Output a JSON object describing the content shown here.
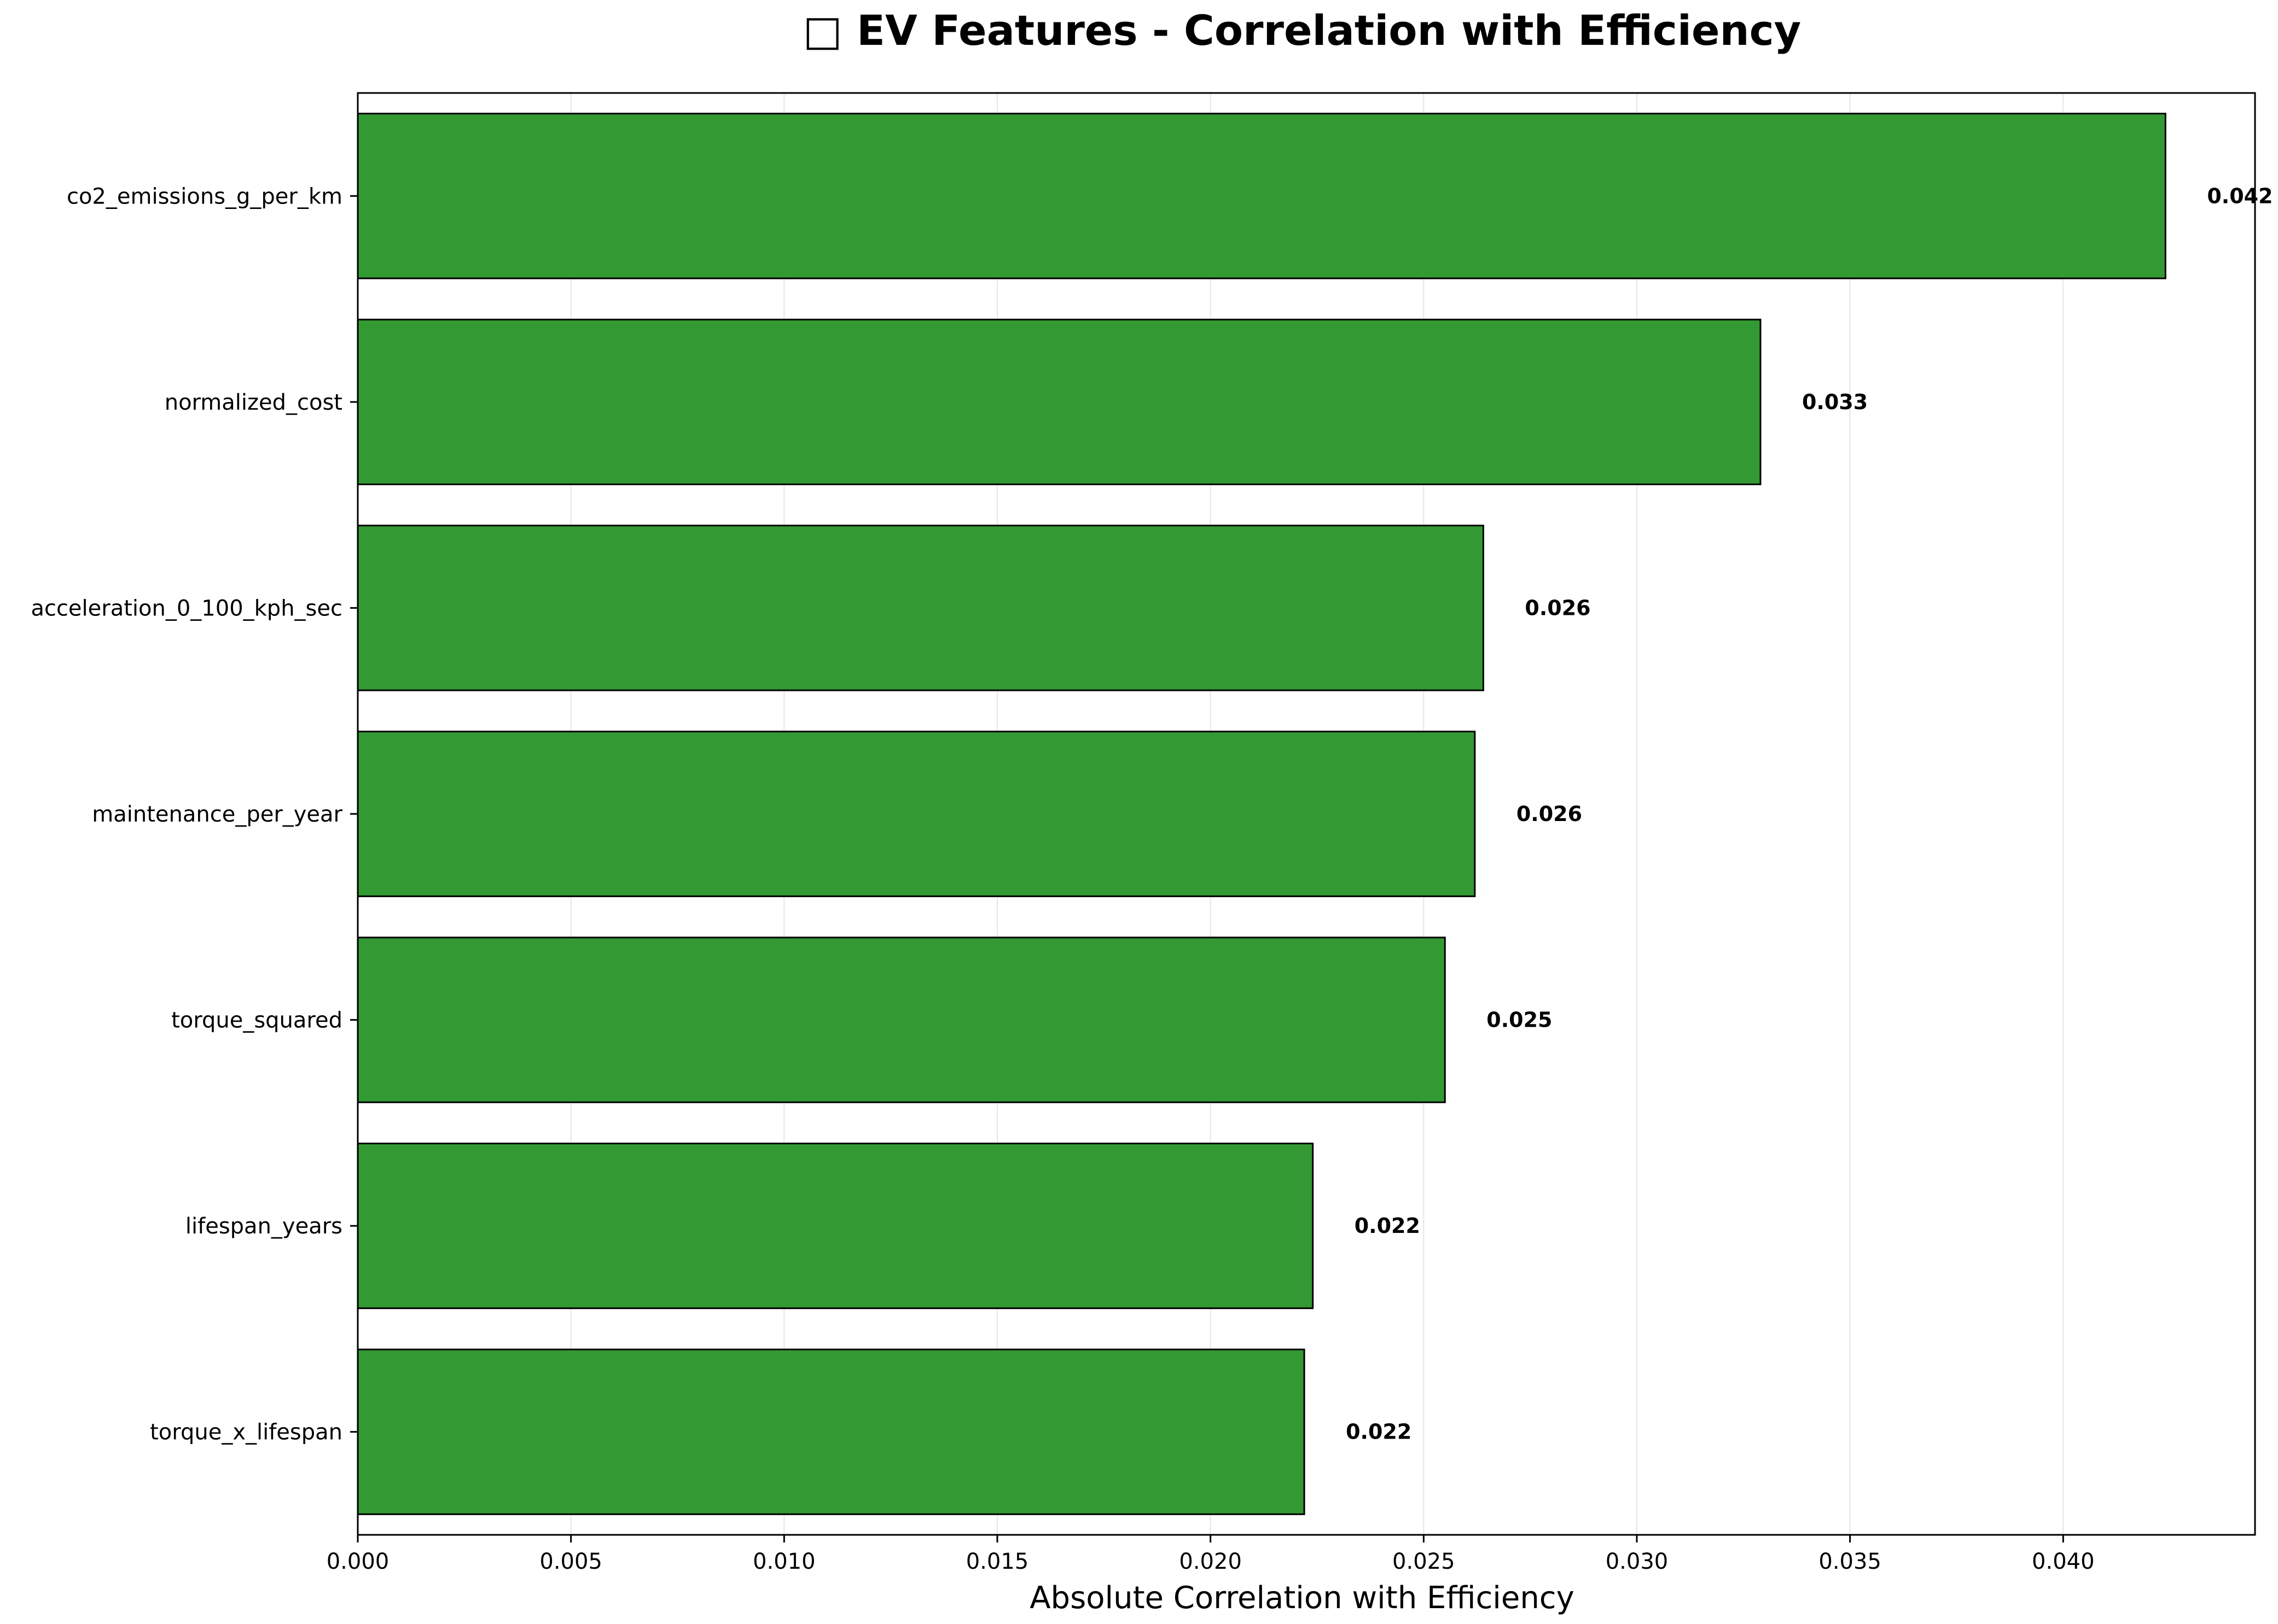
{
  "chart_data": {
    "type": "bar",
    "orientation": "horizontal",
    "title": "□ EV Features - Correlation with Efficiency",
    "xlabel": "Absolute Correlation with Efficiency",
    "ylabel": "",
    "categories": [
      "co2_emissions_g_per_km",
      "normalized_cost",
      "acceleration_0_100_kph_sec",
      "maintenance_per_year",
      "torque_squared",
      "lifespan_years",
      "torque_x_lifespan"
    ],
    "values": [
      0.0424,
      0.0329,
      0.0264,
      0.0262,
      0.0255,
      0.0224,
      0.0222
    ],
    "value_labels": [
      "0.042",
      "0.033",
      "0.026",
      "0.026",
      "0.025",
      "0.022",
      "0.022"
    ],
    "xlim": [
      0,
      0.0445
    ],
    "xticks": [
      0.0,
      0.005,
      0.01,
      0.015,
      0.02,
      0.025,
      0.03,
      0.035,
      0.04
    ],
    "xtick_labels": [
      "0.000",
      "0.005",
      "0.010",
      "0.015",
      "0.020",
      "0.025",
      "0.030",
      "0.035",
      "0.040"
    ],
    "grid": "x",
    "colors": {
      "bar": "#339933",
      "edge": "#000000",
      "grid": "#e6e6e6"
    }
  }
}
